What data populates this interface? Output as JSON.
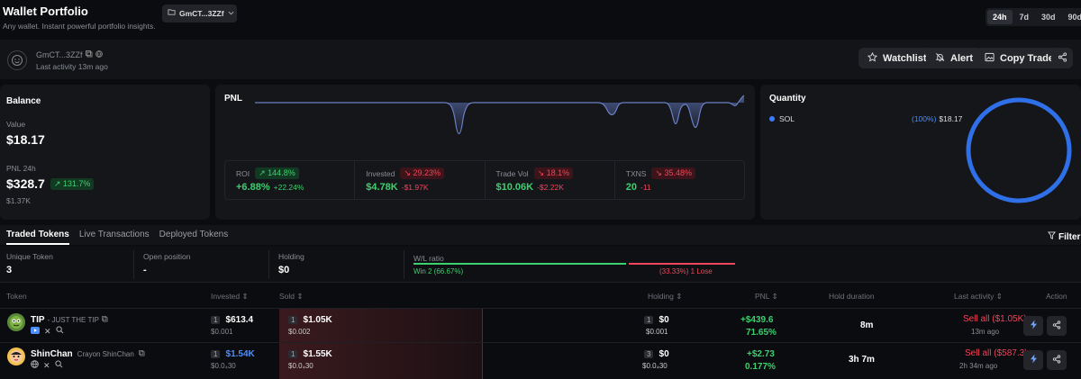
{
  "header": {
    "title": "Wallet Portfolio",
    "subtitle": "Any wallet. Instant powerful portfolio insights.",
    "wallet_selector": "GmCT...3ZZf",
    "timeframes": [
      "24h",
      "7d",
      "30d",
      "90d"
    ],
    "active_timeframe": "24h"
  },
  "profile": {
    "address": "GmCT...3ZZf",
    "last_activity": "Last activity 13m ago",
    "watchlist_label": "Watchlist",
    "alert_label": "Alert",
    "copy_trade_label": "Copy Trade"
  },
  "balance": {
    "title": "Balance",
    "value_label": "Value",
    "value": "$18.17",
    "pnl_label": "PNL 24h",
    "pnl_value": "$328.7",
    "pnl_change": "131.7%",
    "pnl_sub": "$1.37K"
  },
  "pnl_panel": {
    "title": "PNL",
    "stats": [
      {
        "label": "ROI",
        "badge": "144.8%",
        "badge_dir": "up",
        "value": "+6.88%",
        "value_color": "green",
        "sub": "+22.24%",
        "sub_color": "green"
      },
      {
        "label": "Invested",
        "badge": "29.23%",
        "badge_dir": "down",
        "value": "$4.78K",
        "value_color": "green",
        "sub": "-$1.97K",
        "sub_color": "red"
      },
      {
        "label": "Trade Vol",
        "badge": "18.1%",
        "badge_dir": "down",
        "value": "$10.06K",
        "value_color": "green",
        "sub": "-$2.22K",
        "sub_color": "red"
      },
      {
        "label": "TXNS",
        "badge": "35.48%",
        "badge_dir": "down",
        "value": "20",
        "value_color": "green",
        "sub": "-11",
        "sub_color": "red"
      }
    ]
  },
  "quantity": {
    "title": "Quantity",
    "token": "SOL",
    "percent": "(100%)",
    "amount": "$18.17",
    "share": 1.0,
    "color": "#2f6fe8"
  },
  "tabs": {
    "items": [
      "Traded Tokens",
      "Live Transactions",
      "Deployed Tokens"
    ],
    "active": 0,
    "filter_label": "Filter"
  },
  "summary": {
    "unique_label": "Unique Token",
    "unique_value": "3",
    "open_label": "Open position",
    "open_value": "-",
    "holding_label": "Holding",
    "holding_value": "$0",
    "wl_label": "W/L ratio",
    "win_text": "Win 2 (66.67%)",
    "lose_text": "(33.33%) 1 Lose",
    "win_fraction": 0.6667
  },
  "table": {
    "headers": {
      "token": "Token",
      "invested": "Invested",
      "sold": "Sold",
      "holding": "Holding",
      "pnl": "PNL",
      "hold_duration": "Hold duration",
      "last_activity": "Last activity",
      "action": "Action"
    },
    "rows": [
      {
        "symbol": "TIP",
        "name": "- JUST THE TIP",
        "invested_count": "1",
        "invested": "$613.4",
        "invested_sub": "$0.001",
        "sold_count": "1",
        "sold": "$1.05K",
        "sold_sub": "$0.002",
        "holding_count": "1",
        "holding": "$0",
        "holding_sub": "$0.001",
        "pnl": "+$439.6",
        "pnl_pct": "71.65%",
        "duration": "8m",
        "last_action": "Sell all ($1.05K)",
        "last_time": "13m ago"
      },
      {
        "symbol": "ShinChan",
        "name": "Crayon ShinChan",
        "invested_count": "1",
        "invested": "$1.54K",
        "invested_sub": "$0.0₄30",
        "sold_count": "1",
        "sold": "$1.55K",
        "sold_sub": "$0.0₄30",
        "holding_count": "3",
        "holding": "$0",
        "holding_sub": "$0.0₄30",
        "pnl": "+$2.73",
        "pnl_pct": "0.177%",
        "duration": "3h 7m",
        "last_action": "Sell all ($587.3)",
        "last_time": "2h 34m ago"
      }
    ]
  }
}
